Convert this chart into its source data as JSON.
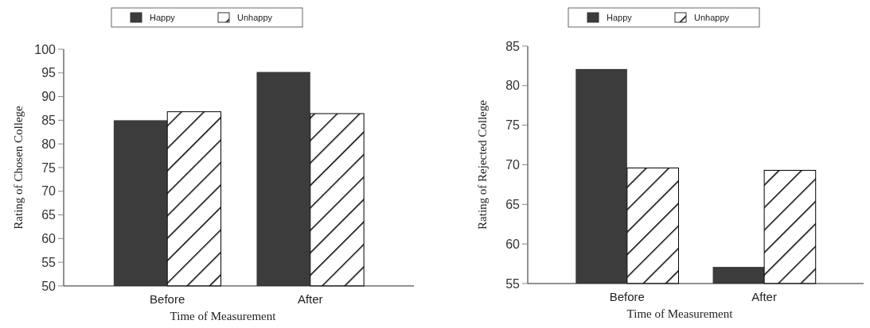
{
  "chart_data": [
    {
      "type": "bar",
      "xlabel": "Time of Measurement",
      "ylabel": "Rating of Chosen College",
      "categories": [
        "Before",
        "After"
      ],
      "series": [
        {
          "name": "Happy",
          "color": "#3c3c3c",
          "values": [
            85.0,
            95.2
          ]
        },
        {
          "name": "Unhappy",
          "color": "#000000",
          "values": [
            86.8,
            86.4
          ]
        }
      ],
      "ylim": [
        50,
        100
      ],
      "yticks": [
        50,
        55,
        60,
        65,
        70,
        75,
        80,
        85,
        90,
        95,
        100
      ],
      "legend": "top",
      "grid": false
    },
    {
      "type": "bar",
      "xlabel": "Time of Measurement",
      "ylabel": "Rating of Rejected College",
      "categories": [
        "Before",
        "After"
      ],
      "series": [
        {
          "name": "Happy",
          "color": "#3c3c3c",
          "values": [
            82.1,
            57.1
          ]
        },
        {
          "name": "Unhappy",
          "color": "#000000",
          "values": [
            69.6,
            69.3
          ]
        }
      ],
      "ylim": [
        55,
        85
      ],
      "yticks": [
        55,
        60,
        65,
        70,
        75,
        80,
        85
      ],
      "legend": "top",
      "grid": false
    }
  ]
}
